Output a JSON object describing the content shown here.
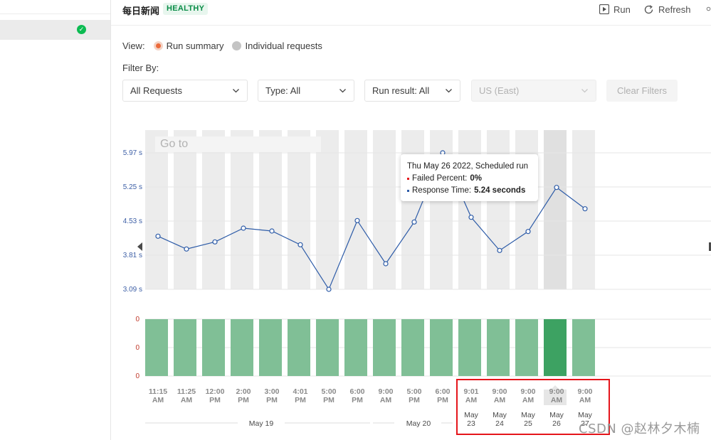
{
  "header": {
    "title": "每日新闻",
    "status_badge": "HEALTHY",
    "run_label": "Run",
    "refresh_label": "Refresh"
  },
  "view": {
    "label": "View:",
    "options": [
      {
        "label": "Run summary",
        "selected": true
      },
      {
        "label": "Individual requests",
        "selected": false
      }
    ]
  },
  "filters": {
    "label": "Filter By:",
    "requests": "All Requests",
    "type": "Type: All",
    "run_result": "Run result: All",
    "region": "US (East)",
    "clear": "Clear Filters"
  },
  "goto_placeholder": "Go to",
  "tooltip": {
    "title": "Thu May 26 2022, Scheduled run",
    "failed_label": "Failed Percent:",
    "failed_value": "0%",
    "response_label": "Response Time:",
    "response_value": "5.24 seconds"
  },
  "colors": {
    "accent": "#ec6a3a",
    "healthy": "#0a8d48",
    "line": "#2e5ca8",
    "bar": "#80bf96",
    "bar_selected": "#3da262",
    "highlight_box": "#e5151b"
  },
  "chart_data": [
    {
      "type": "line",
      "ylabel": "",
      "y_ticks": [
        "5.97 s",
        "5.25 s",
        "4.53 s",
        "3.81 s",
        "3.09 s"
      ],
      "y_tick_values": [
        5.97,
        5.25,
        4.53,
        3.81,
        3.09
      ],
      "categories": [
        "11:15 AM",
        "11:25 AM",
        "12:00 PM",
        "2:00 PM",
        "3:00 PM",
        "4:01 PM",
        "5:00 PM",
        "6:00 PM",
        "9:00 AM",
        "5:00 PM",
        "6:00 PM",
        "9:01 AM",
        "9:00 AM",
        "9:00 AM",
        "9:00 AM",
        "9:00 AM"
      ],
      "values": [
        4.21,
        3.94,
        4.09,
        4.38,
        4.32,
        4.03,
        3.09,
        4.54,
        3.63,
        4.51,
        5.97,
        4.61,
        3.91,
        4.31,
        5.24,
        4.79
      ],
      "selected_index": 14,
      "ylim": [
        3.09,
        5.97
      ],
      "grid": true
    },
    {
      "type": "bar",
      "y_ticks": [
        "0",
        "0",
        "0"
      ],
      "categories": [
        "11:15 AM",
        "11:25 AM",
        "12:00 PM",
        "2:00 PM",
        "3:00 PM",
        "4:01 PM",
        "5:00 PM",
        "6:00 PM",
        "9:00 AM",
        "5:00 PM",
        "6:00 PM",
        "9:01 AM",
        "9:00 AM",
        "9:00 AM",
        "9:00 AM",
        "9:00 AM"
      ],
      "values": [
        0,
        0,
        0,
        0,
        0,
        0,
        0,
        0,
        0,
        0,
        0,
        0,
        0,
        0,
        0,
        0
      ],
      "selected_index": 14
    }
  ],
  "x_labels": [
    [
      "11:15",
      "AM"
    ],
    [
      "11:25",
      "AM"
    ],
    [
      "12:00",
      "PM"
    ],
    [
      "2:00",
      "PM"
    ],
    [
      "3:00",
      "PM"
    ],
    [
      "4:01",
      "PM"
    ],
    [
      "5:00",
      "PM"
    ],
    [
      "6:00",
      "PM"
    ],
    [
      "9:00",
      "AM"
    ],
    [
      "5:00",
      "PM"
    ],
    [
      "6:00",
      "PM"
    ],
    [
      "9:01",
      "AM"
    ],
    [
      "9:00",
      "AM"
    ],
    [
      "9:00",
      "AM"
    ],
    [
      "9:00",
      "AM"
    ],
    [
      "9:00",
      "AM"
    ]
  ],
  "date_groups": [
    {
      "label": "May 19"
    },
    {
      "label": "May 20"
    }
  ],
  "date_labels": [
    [
      "May",
      "23"
    ],
    [
      "May",
      "24"
    ],
    [
      "May",
      "25"
    ],
    [
      "May",
      "26"
    ],
    [
      "May",
      "27"
    ]
  ],
  "watermark": "CSDN @赵林夕木楠"
}
